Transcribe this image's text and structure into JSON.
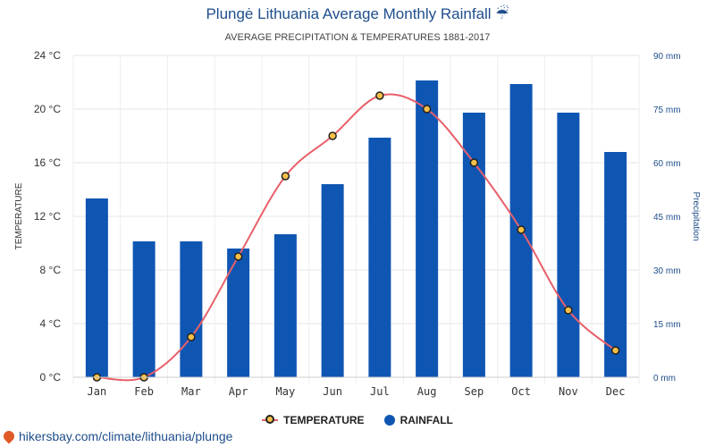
{
  "header": {
    "title": "Plungė Lithuania Average Monthly Rainfall ☔",
    "subtitle": "AVERAGE PRECIPITATION & TEMPERATURES 1881-2017"
  },
  "footer": {
    "link_text": "hikersbay.com/climate/lithuania/plunge"
  },
  "colors": {
    "rainfall_bar": "#0f56b3",
    "temperature_line": "#e8606a",
    "temperature_marker": "#f6bf47",
    "right_axis": "#1f4e8c"
  },
  "chart_data": {
    "type": "bar",
    "categories": [
      "Jan",
      "Feb",
      "Mar",
      "Apr",
      "May",
      "Jun",
      "Jul",
      "Aug",
      "Sep",
      "Oct",
      "Nov",
      "Dec"
    ],
    "series": [
      {
        "name": "RAINFALL",
        "type": "bar",
        "axis": "right",
        "values": [
          50,
          38,
          38,
          36,
          40,
          54,
          67,
          83,
          74,
          82,
          74,
          63
        ]
      },
      {
        "name": "TEMPERATURE",
        "type": "line",
        "axis": "left",
        "values": [
          0,
          0,
          3,
          9,
          15,
          18,
          21,
          20,
          16,
          11,
          5,
          2
        ]
      }
    ],
    "ylabel_left": "TEMPERATURE",
    "ylabel_right": "Precipitation",
    "ylim_left": [
      0,
      24
    ],
    "ylim_right": [
      0,
      90
    ],
    "yticks_left": [
      "0 °C",
      "4 °C",
      "8 °C",
      "12 °C",
      "16 °C",
      "20 °C",
      "24 °C"
    ],
    "yticks_right": [
      "0 mm",
      "15 mm",
      "30 mm",
      "45 mm",
      "60 mm",
      "75 mm",
      "90 mm"
    ],
    "grid": true,
    "legend_position": "bottom-center"
  }
}
